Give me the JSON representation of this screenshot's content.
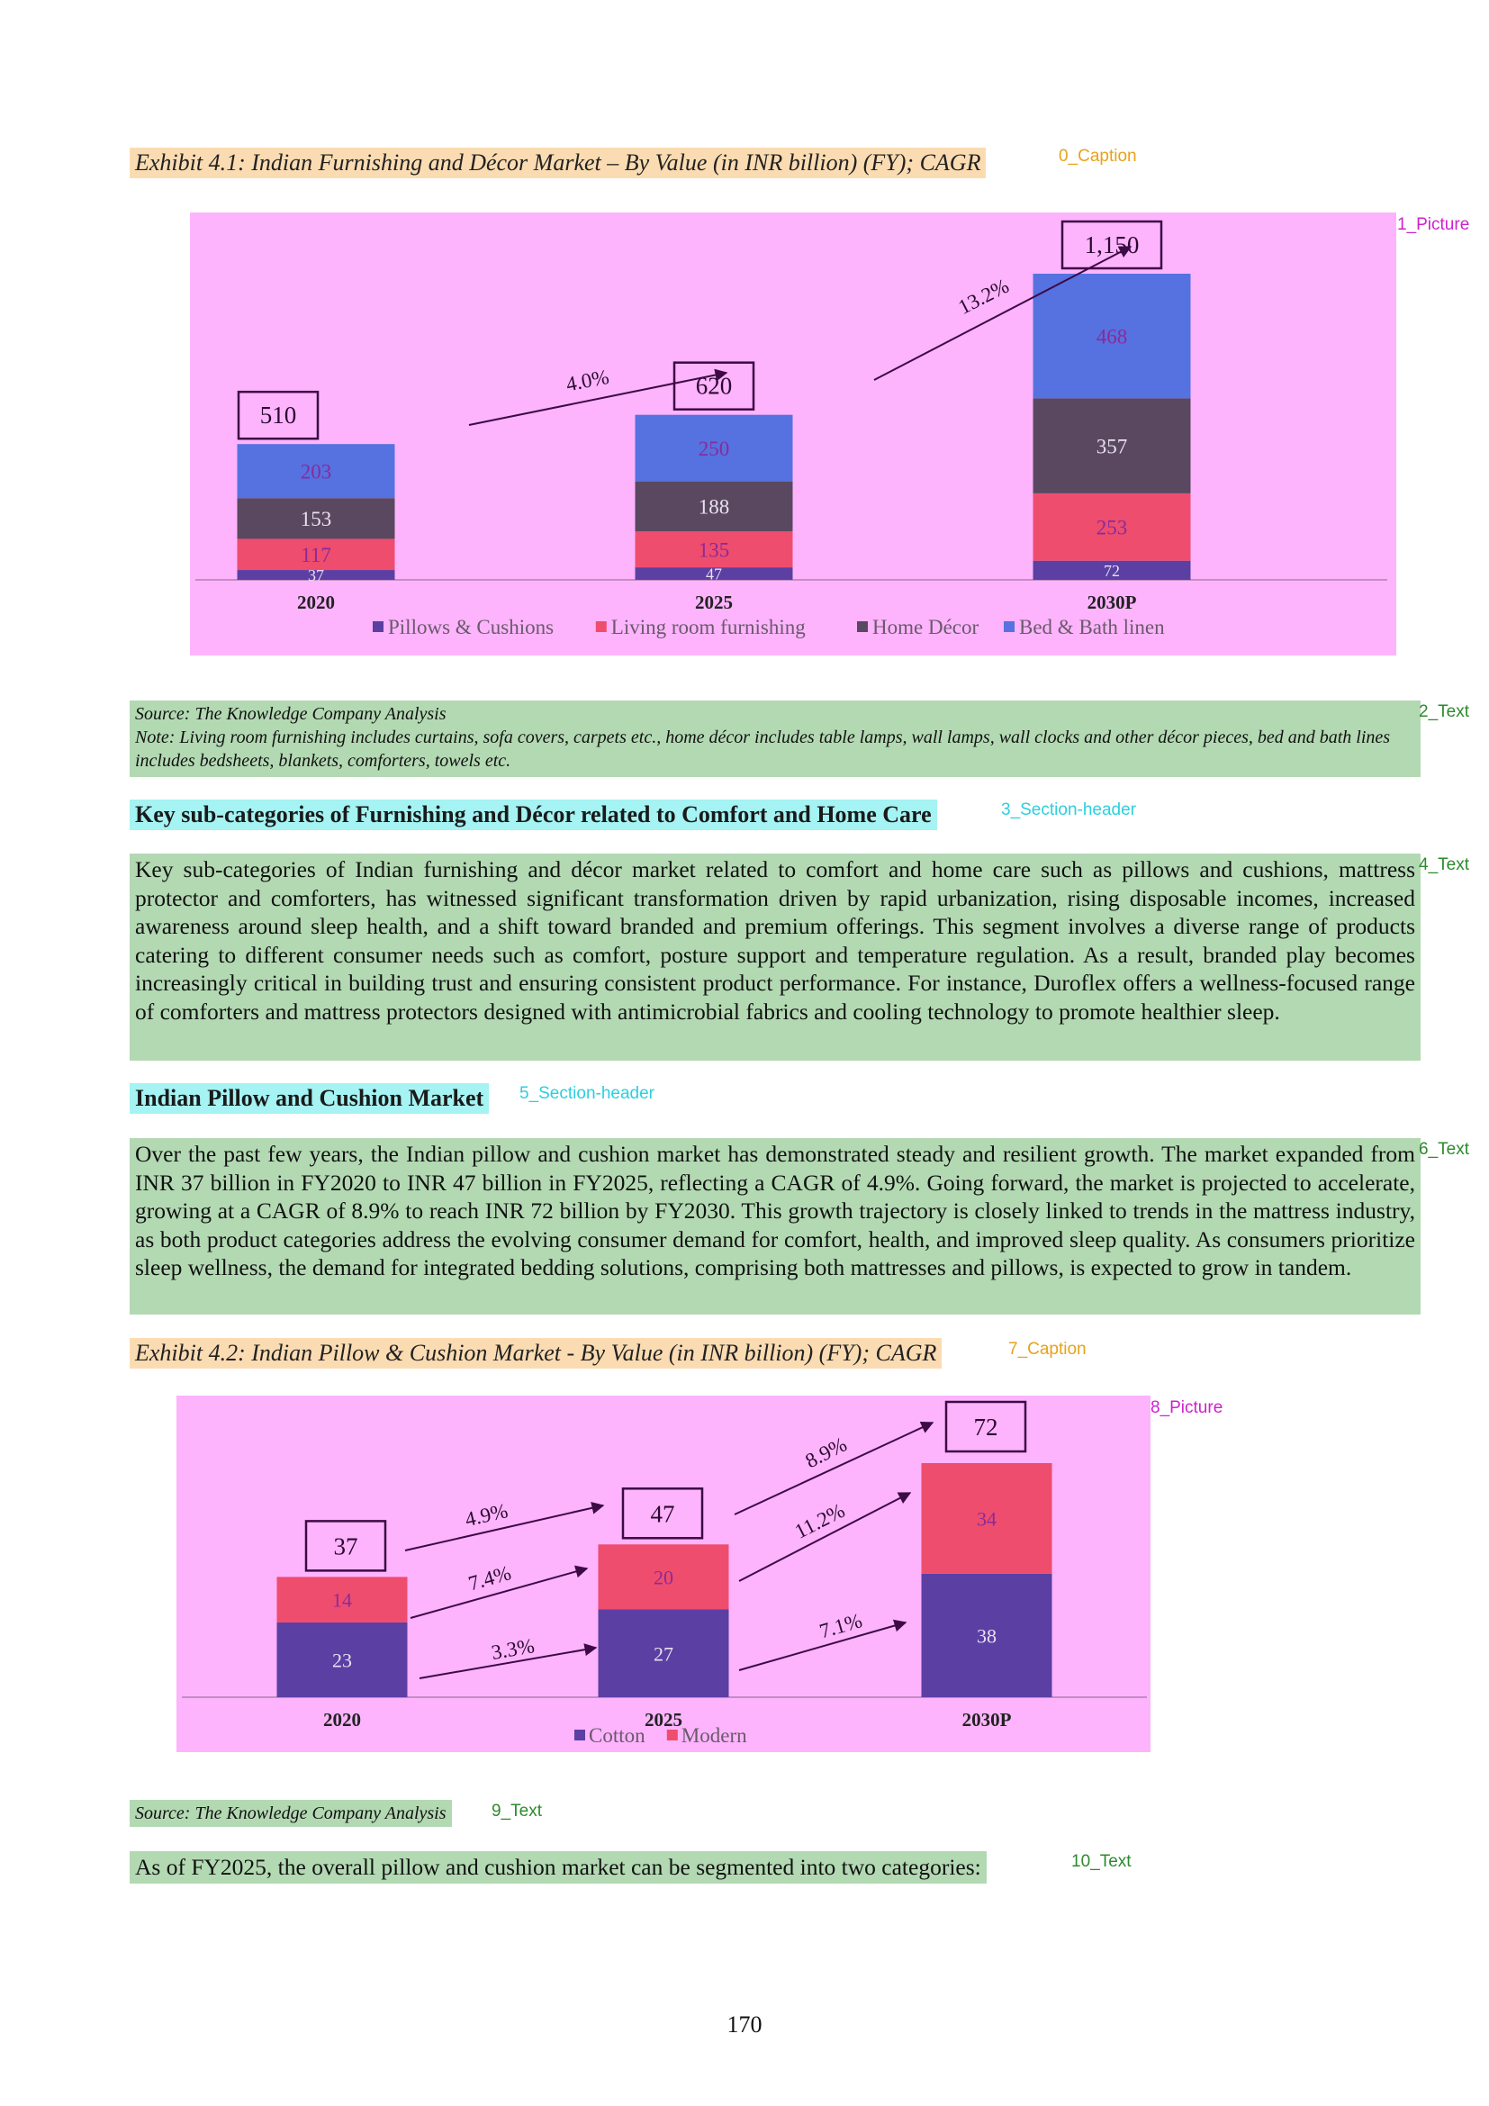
{
  "layout_labels": {
    "l0": "0_Caption",
    "l1": "1_Picture",
    "l2": "2_Text",
    "l3": "3_Section-header",
    "l4": "4_Text",
    "l5": "5_Section-header",
    "l6": "6_Text",
    "l7": "7_Caption",
    "l8": "8_Picture",
    "l9": "9_Text",
    "l10": "10_Text"
  },
  "exhibit1": {
    "caption": "Exhibit 4.1: Indian Furnishing and Décor Market – By Value (in INR billion) (FY); CAGR"
  },
  "source1": {
    "line1": "Source: The Knowledge Company Analysis",
    "line2": "Note: Living room furnishing includes curtains, sofa covers, carpets etc., home décor includes table lamps, wall lamps, wall clocks and other décor pieces, bed and bath lines includes bedsheets, blankets, comforters, towels etc."
  },
  "section1": {
    "title": "Key sub-categories of Furnishing and Décor related to Comfort and Home Care"
  },
  "para1": "Key sub-categories of Indian furnishing and décor market related to comfort and home care such as pillows and cushions, mattress protector and comforters, has witnessed significant transformation driven by rapid urbanization, rising disposable incomes, increased awareness around sleep health, and a shift toward branded and premium offerings. This segment involves a diverse range of products catering to different consumer needs such as comfort, posture support and temperature regulation. As a result, branded play becomes increasingly critical in building trust and ensuring consistent product performance. For instance, Duroflex offers a wellness-focused range of comforters and mattress protectors designed with antimicrobial fabrics and cooling technology to promote healthier sleep.",
  "section2": {
    "title": "Indian Pillow and Cushion Market"
  },
  "para2": "Over the past few years, the Indian pillow and cushion market has demonstrated steady and resilient growth. The market expanded from INR 37 billion in FY2020 to INR 47 billion in FY2025, reflecting a CAGR of 4.9%. Going forward, the market is projected to accelerate, growing at a CAGR of 8.9% to reach INR 72 billion by FY2030. This growth trajectory is closely linked to trends in the mattress industry, as both product categories address the evolving consumer demand for comfort, health, and improved sleep quality. As consumers prioritize sleep wellness, the demand for integrated bedding solutions, comprising both mattresses and pillows, is expected to grow in tandem.",
  "exhibit2": {
    "caption": "Exhibit 4.2: Indian Pillow & Cushion Market - By Value (in INR billion) (FY); CAGR"
  },
  "source2": {
    "text": "Source: The Knowledge Company Analysis"
  },
  "para3": "As of FY2025, the overall pillow and cushion market can be segmented into two categories:",
  "page_number": "170",
  "chart_data": [
    {
      "type": "bar",
      "stacked": true,
      "title": "",
      "xlabel": "",
      "ylabel": "",
      "categories": [
        "2020",
        "2025",
        "2030P"
      ],
      "series": [
        {
          "name": "Pillows & Cushions",
          "values": [
            37,
            47,
            72
          ],
          "color": "#5b3fa3"
        },
        {
          "name": "Living room furnishing",
          "values": [
            117,
            135,
            253
          ],
          "color": "#ee4d6e"
        },
        {
          "name": "Home Décor",
          "values": [
            153,
            188,
            357
          ],
          "color": "#5a4860"
        },
        {
          "name": "Bed & Bath linen",
          "values": [
            203,
            250,
            468
          ],
          "color": "#5572e0"
        }
      ],
      "totals": [
        "510",
        "620",
        "1,150"
      ],
      "cagr": [
        "4.0%",
        "13.2%"
      ],
      "legend": "bottom",
      "grid": false,
      "ylim": [
        0,
        1150
      ]
    },
    {
      "type": "bar",
      "stacked": true,
      "title": "",
      "xlabel": "",
      "ylabel": "",
      "categories": [
        "2020",
        "2025",
        "2030P"
      ],
      "series": [
        {
          "name": "Cotton",
          "values": [
            23,
            27,
            38
          ],
          "color": "#5b3fa3"
        },
        {
          "name": "Modern",
          "values": [
            14,
            20,
            34
          ],
          "color": "#ee4d6e"
        }
      ],
      "totals": [
        "37",
        "47",
        "72"
      ],
      "cagr_total": [
        "4.9%",
        "8.9%"
      ],
      "cagr_modern": [
        "7.4%",
        "11.2%"
      ],
      "cagr_cotton": [
        "3.3%",
        "7.1%"
      ],
      "legend": "bottom",
      "grid": false,
      "ylim": [
        0,
        72
      ]
    }
  ]
}
